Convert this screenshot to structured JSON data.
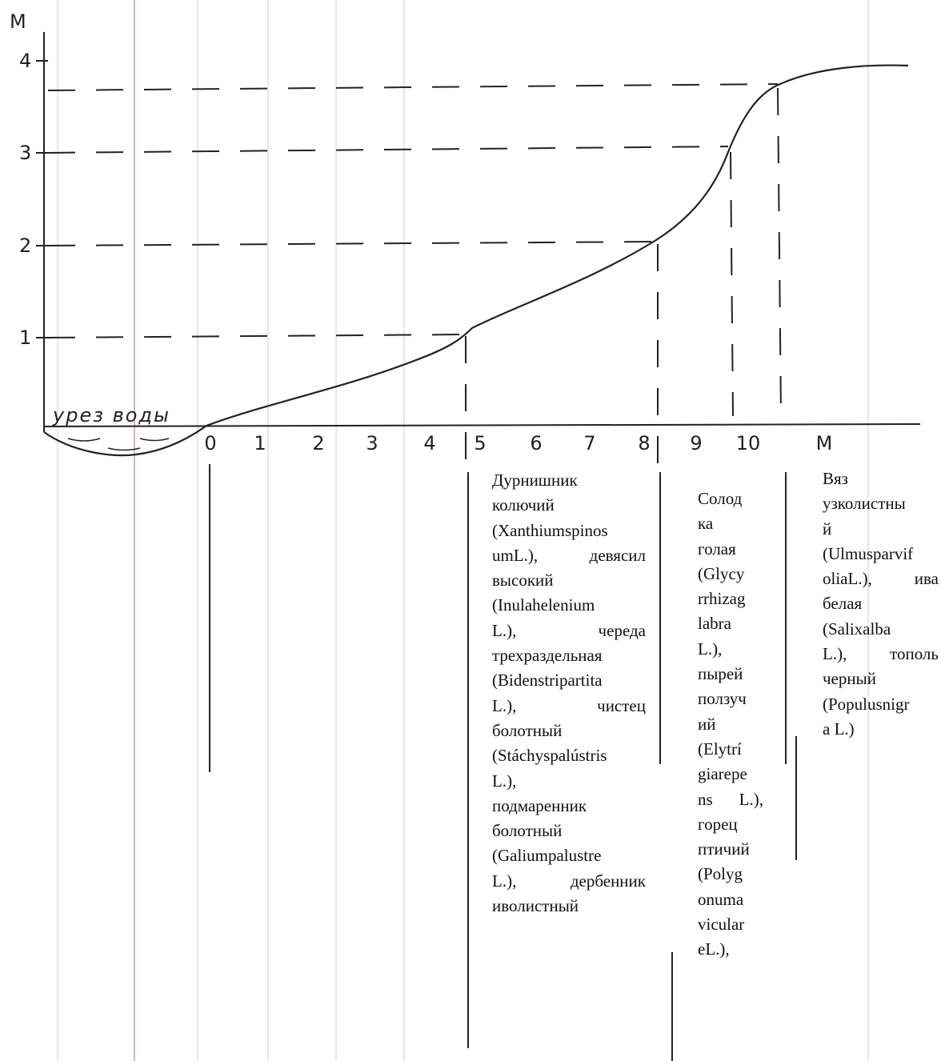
{
  "axis": {
    "y_unit": "М",
    "y_ticks": [
      "1",
      "2",
      "3",
      "4"
    ],
    "x_ticks": [
      "0",
      "1",
      "2",
      "3",
      "4",
      "5",
      "6",
      "7",
      "8",
      "9",
      "10"
    ],
    "x_unit": "М",
    "water_edge": "урез воды"
  },
  "zones": [
    {
      "lines": [
        "Дурнишник",
        "колючий",
        "(Xanthiumspinos",
        "umL.),  девясил",
        "высокий",
        "(Inulahelenium",
        "L.),       череда",
        "трехраздельная",
        "(Bidenstripartita",
        "L.),         чистец",
        "болотный",
        "(Stáchyspalústris",
        "L.),",
        "подмаренник",
        "болотный",
        "(Galiumpalustre",
        "L.),  дербенник",
        "иволистный"
      ]
    },
    {
      "lines": [
        "Солод",
        "ка",
        "голая",
        "(Glycy",
        "rrhizag",
        "labra",
        "L.),",
        "пырей",
        "ползуч",
        "ий",
        "(Elytrí",
        "giarepe",
        "ns  L.),",
        "горец",
        "птичий",
        "(Polyg",
        "onuma",
        "vicular",
        "eL.),"
      ]
    },
    {
      "lines": [
        "Вяз",
        "узколистны",
        "й",
        "(Ulmusparvif",
        "oliaL.),  ива",
        "белая",
        "(Salixalba",
        "L.),   тополь",
        "черный",
        "(Populusnigr",
        "a L.)"
      ]
    }
  ]
}
